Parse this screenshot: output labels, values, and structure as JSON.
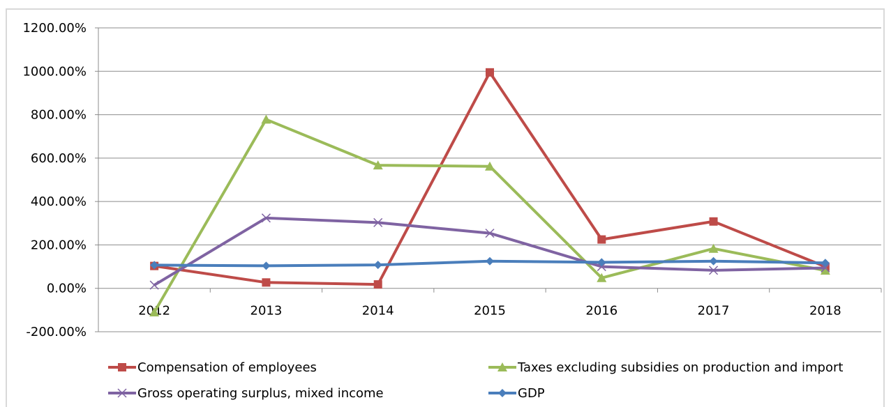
{
  "chart_data": {
    "type": "line",
    "categories": [
      "2012",
      "2013",
      "2014",
      "2015",
      "2016",
      "2017",
      "2018"
    ],
    "ylim": [
      -200,
      1200
    ],
    "yticks": [
      1200,
      1000,
      800,
      600,
      400,
      200,
      0,
      -200
    ],
    "ytick_labels": [
      "1200.00%",
      "1000.00%",
      "800.00%",
      "600.00%",
      "400.00%",
      "200.00%",
      "0.00%",
      "-200.00%"
    ],
    "grid": true,
    "legend_position": "bottom",
    "series": [
      {
        "name": "Compensation of employees",
        "color": "#be4b48",
        "marker": "square",
        "values": [
          103,
          27,
          18,
          995,
          225,
          308,
          100
        ]
      },
      {
        "name": "Taxes excluding subsidies on production and import",
        "color": "#9bbb59",
        "marker": "triangle",
        "values": [
          -110,
          778,
          567,
          562,
          48,
          183,
          82
        ]
      },
      {
        "name": "Gross operating surplus, mixed income",
        "color": "#7f63a2",
        "marker": "x",
        "values": [
          15,
          324,
          303,
          254,
          100,
          83,
          94
        ]
      },
      {
        "name": "GDP",
        "color": "#4a7ebb",
        "marker": "diamond",
        "values": [
          107,
          104,
          108,
          125,
          120,
          125,
          117
        ]
      }
    ]
  }
}
